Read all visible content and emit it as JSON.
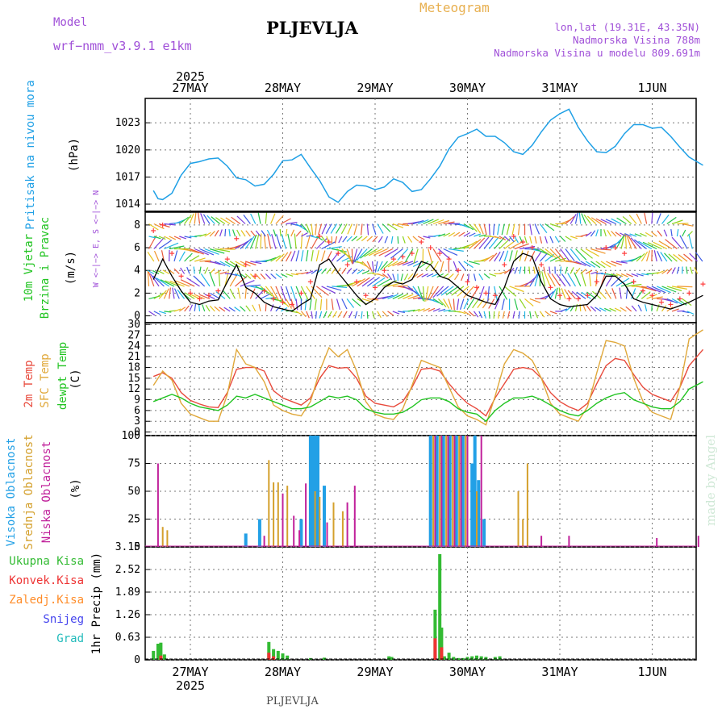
{
  "header": {
    "model_label": "Model",
    "model_value": "wrf−nmm_v3.9.1  e1km",
    "station": "PLJEVLJA",
    "product": "Meteogram",
    "lonlat": "lon,lat (19.31E, 43.35N)",
    "altitude": "Nadmorska Visina 788m",
    "model_altitude": "Nadmorska Visina u modelu 809.691m"
  },
  "footer": {
    "station": "PLJEVLJA",
    "watermark": "made by Angel"
  },
  "time_axis": {
    "year": "2025",
    "days": [
      "27MAY",
      "28MAY",
      "29MAY",
      "30MAY",
      "31MAY",
      "1JUN"
    ]
  },
  "colors": {
    "pressure": "#1fa0e6",
    "wind_speed": "#000000",
    "wind_gust": "#ff3c3c",
    "temp_2m": "#e84a3c",
    "temp_sfc": "#e0a83a",
    "temp_dew": "#22c422",
    "cloud_high": "#22a0e6",
    "cloud_mid": "#d4a02c",
    "cloud_low": "#c0209a",
    "precip_total": "#33bb33",
    "precip_conv": "#ee3333",
    "precip_frozen": "#ff8c28",
    "precip_snow": "#4444ee",
    "precip_hail": "#22bbbb"
  },
  "chart_data": [
    {
      "type": "line",
      "panel": "pressure",
      "ylabel": [
        "Pritisak na nivou mora",
        "(hPa)"
      ],
      "yticks": [
        1014,
        1017,
        1020,
        1023
      ],
      "ylim": [
        1013.2,
        1025.7
      ],
      "x_unit": "days since 27MAY 00 UTC",
      "x": [
        -0.4,
        -0.35,
        -0.3,
        -0.2,
        -0.1,
        0.0,
        0.1,
        0.2,
        0.3,
        0.4,
        0.5,
        0.6,
        0.7,
        0.8,
        0.9,
        1.0,
        1.1,
        1.2,
        1.3,
        1.4,
        1.5,
        1.6,
        1.7,
        1.8,
        1.9,
        2.0,
        2.1,
        2.2,
        2.3,
        2.4,
        2.5,
        2.6,
        2.7,
        2.8,
        2.9,
        3.0,
        3.1,
        3.2,
        3.3,
        3.4,
        3.5,
        3.6,
        3.7,
        3.8,
        3.9,
        4.0,
        4.1,
        4.2,
        4.3,
        4.4,
        4.5,
        4.6,
        4.7,
        4.8,
        4.9,
        5.0,
        5.1,
        5.2,
        5.3,
        5.4,
        5.55
      ],
      "y": [
        1015.5,
        1014.6,
        1014.5,
        1015.2,
        1017.2,
        1018.5,
        1018.7,
        1019.0,
        1019.1,
        1018.2,
        1016.9,
        1016.7,
        1016.0,
        1016.2,
        1017.3,
        1018.8,
        1018.9,
        1019.5,
        1018.0,
        1016.6,
        1014.8,
        1014.2,
        1015.4,
        1016.1,
        1016.0,
        1015.6,
        1015.9,
        1016.8,
        1016.4,
        1015.4,
        1015.6,
        1016.8,
        1018.2,
        1020.1,
        1021.4,
        1021.8,
        1022.3,
        1021.5,
        1021.5,
        1020.8,
        1019.8,
        1019.5,
        1020.5,
        1022.0,
        1023.3,
        1024.0,
        1024.5,
        1022.5,
        1021.0,
        1019.8,
        1019.7,
        1020.4,
        1021.8,
        1022.8,
        1022.8,
        1022.4,
        1022.5,
        1021.5,
        1020.3,
        1019.2,
        1018.3
      ]
    },
    {
      "type": "line",
      "panel": "wind",
      "ylabel": [
        "10m Vjetar",
        "Brzina i Pravac",
        "(m/s)"
      ],
      "direction_key": "W <−|−> E, S <−|−> N",
      "yticks": [
        0,
        2,
        4,
        6,
        8
      ],
      "ylim": [
        -0.6,
        9.2
      ],
      "x_unit": "days since 27MAY 00 UTC",
      "series": [
        {
          "name": "speed",
          "x": [
            -0.4,
            -0.3,
            -0.2,
            -0.1,
            0.0,
            0.1,
            0.2,
            0.3,
            0.4,
            0.5,
            0.6,
            0.7,
            0.8,
            0.9,
            1.0,
            1.1,
            1.2,
            1.3,
            1.4,
            1.5,
            1.6,
            1.7,
            1.8,
            1.9,
            2.0,
            2.1,
            2.2,
            2.3,
            2.4,
            2.5,
            2.6,
            2.7,
            2.8,
            2.9,
            3.0,
            3.1,
            3.2,
            3.3,
            3.4,
            3.5,
            3.6,
            3.7,
            3.8,
            3.9,
            4.0,
            4.1,
            4.2,
            4.3,
            4.4,
            4.5,
            4.6,
            4.7,
            4.8,
            4.9,
            5.0,
            5.1,
            5.2,
            5.3,
            5.4,
            5.55
          ],
          "y": [
            3.2,
            5.0,
            3.5,
            2.2,
            1.2,
            1.0,
            1.3,
            1.4,
            3.0,
            4.5,
            2.5,
            2.0,
            1.2,
            0.8,
            0.6,
            0.4,
            1.0,
            1.5,
            4.5,
            5.0,
            3.8,
            2.8,
            1.8,
            1.0,
            1.5,
            2.5,
            3.0,
            2.8,
            3.2,
            4.8,
            4.5,
            3.5,
            3.2,
            2.5,
            1.8,
            1.5,
            1.2,
            1.0,
            2.5,
            4.8,
            5.5,
            5.2,
            3.0,
            1.5,
            1.0,
            0.8,
            0.9,
            1.0,
            1.8,
            3.5,
            3.5,
            2.8,
            1.5,
            1.2,
            1.0,
            0.8,
            0.6,
            0.9,
            1.2,
            1.8
          ]
        },
        {
          "name": "gust",
          "x": [
            -0.4,
            -0.3,
            -0.2,
            -0.1,
            0.0,
            0.1,
            0.2,
            0.3,
            0.4,
            0.5,
            0.6,
            0.7,
            0.8,
            0.9,
            1.0,
            1.1,
            1.2,
            1.3,
            1.4,
            1.5,
            1.6,
            1.7,
            1.8,
            1.9,
            2.0,
            2.1,
            2.2,
            2.3,
            2.4,
            2.5,
            2.6,
            2.7,
            2.8,
            2.9,
            3.0,
            3.1,
            3.2,
            3.3,
            3.4,
            3.5,
            3.6,
            3.7,
            3.8,
            3.9,
            4.0,
            4.1,
            4.2,
            4.3,
            4.4,
            4.5,
            4.6,
            4.7,
            4.8,
            4.9,
            5.0,
            5.1,
            5.2,
            5.3,
            5.4,
            5.55
          ],
          "y": [
            7.5,
            8.0,
            5.5,
            3.5,
            2.0,
            1.5,
            1.8,
            2.2,
            5.0,
            6.8,
            4.5,
            3.5,
            2.2,
            1.5,
            1.2,
            1.0,
            2.0,
            3.0,
            7.0,
            6.5,
            5.5,
            4.5,
            3.0,
            1.8,
            2.5,
            4.0,
            5.0,
            5.2,
            5.5,
            6.5,
            6.0,
            5.5,
            5.0,
            4.0,
            3.0,
            2.5,
            2.0,
            1.8,
            4.5,
            7.0,
            6.5,
            6.0,
            4.5,
            2.5,
            1.8,
            1.5,
            1.5,
            1.8,
            3.0,
            6.0,
            6.0,
            5.5,
            3.0,
            2.2,
            1.8,
            1.2,
            1.0,
            1.5,
            2.0,
            2.8
          ]
        }
      ]
    },
    {
      "type": "line",
      "panel": "temperature",
      "ylabel": [
        "2m Temp",
        "SFC Temp",
        "dewpt Temp",
        "(C)"
      ],
      "yticks": [
        0,
        3,
        6,
        9,
        12,
        15,
        18,
        21,
        24,
        27,
        30
      ],
      "ylim": [
        -1,
        30.5
      ],
      "x_unit": "days since 27MAY 00 UTC",
      "series": [
        {
          "name": "2m Temp",
          "x": [
            -0.4,
            -0.3,
            -0.2,
            -0.1,
            0.0,
            0.1,
            0.2,
            0.3,
            0.4,
            0.5,
            0.6,
            0.7,
            0.8,
            0.9,
            1.0,
            1.1,
            1.2,
            1.3,
            1.4,
            1.5,
            1.6,
            1.7,
            1.8,
            1.9,
            2.0,
            2.1,
            2.2,
            2.3,
            2.4,
            2.5,
            2.6,
            2.7,
            2.8,
            2.9,
            3.0,
            3.1,
            3.2,
            3.3,
            3.4,
            3.5,
            3.6,
            3.7,
            3.8,
            3.9,
            4.0,
            4.1,
            4.2,
            4.3,
            4.4,
            4.5,
            4.6,
            4.7,
            4.8,
            4.9,
            5.0,
            5.1,
            5.2,
            5.3,
            5.4,
            5.55
          ],
          "y": [
            15.5,
            16.5,
            15.0,
            11.0,
            8.8,
            7.8,
            7.0,
            6.8,
            11.0,
            17.5,
            18.0,
            18.0,
            17.0,
            11.5,
            9.5,
            8.5,
            7.5,
            9.5,
            15.0,
            18.5,
            17.8,
            18.0,
            15.0,
            10.0,
            8.0,
            7.5,
            7.0,
            8.5,
            12.5,
            17.5,
            17.8,
            17.0,
            13.5,
            10.5,
            8.0,
            6.5,
            4.5,
            9.5,
            13.5,
            17.5,
            18.0,
            17.5,
            15.0,
            11.0,
            8.5,
            7.0,
            6.0,
            8.0,
            13.5,
            18.5,
            20.5,
            20.0,
            16.0,
            12.5,
            10.5,
            9.5,
            8.5,
            12.5,
            18.5,
            23.0
          ]
        },
        {
          "name": "SFC Temp",
          "x": [
            -0.4,
            -0.3,
            -0.2,
            -0.1,
            0.0,
            0.1,
            0.2,
            0.3,
            0.4,
            0.5,
            0.6,
            0.7,
            0.8,
            0.9,
            1.0,
            1.1,
            1.2,
            1.3,
            1.4,
            1.5,
            1.6,
            1.7,
            1.8,
            1.9,
            2.0,
            2.1,
            2.2,
            2.3,
            2.4,
            2.5,
            2.6,
            2.7,
            2.8,
            2.9,
            3.0,
            3.1,
            3.2,
            3.3,
            3.4,
            3.5,
            3.6,
            3.7,
            3.8,
            3.9,
            4.0,
            4.1,
            4.2,
            4.3,
            4.4,
            4.5,
            4.6,
            4.7,
            4.8,
            4.9,
            5.0,
            5.1,
            5.2,
            5.3,
            5.4,
            5.55
          ],
          "y": [
            13.0,
            17.0,
            14.5,
            8.0,
            5.0,
            4.0,
            3.0,
            3.0,
            10.5,
            23.0,
            19.0,
            18.0,
            14.0,
            7.5,
            6.0,
            5.0,
            4.5,
            8.5,
            17.0,
            23.5,
            21.0,
            23.0,
            17.0,
            8.5,
            5.0,
            4.0,
            3.5,
            6.5,
            13.0,
            20.0,
            19.0,
            18.0,
            12.5,
            7.0,
            4.5,
            3.5,
            2.0,
            10.0,
            19.0,
            23.0,
            22.0,
            20.0,
            15.0,
            8.0,
            5.0,
            4.0,
            3.0,
            7.0,
            16.5,
            25.5,
            25.0,
            24.0,
            15.0,
            8.5,
            5.5,
            4.5,
            3.5,
            12.5,
            26.0,
            28.5
          ]
        },
        {
          "name": "dewpt Temp",
          "x": [
            -0.4,
            -0.3,
            -0.2,
            -0.1,
            0.0,
            0.1,
            0.2,
            0.3,
            0.4,
            0.5,
            0.6,
            0.7,
            0.8,
            0.9,
            1.0,
            1.1,
            1.2,
            1.3,
            1.4,
            1.5,
            1.6,
            1.7,
            1.8,
            1.9,
            2.0,
            2.1,
            2.2,
            2.3,
            2.4,
            2.5,
            2.6,
            2.7,
            2.8,
            2.9,
            3.0,
            3.1,
            3.2,
            3.3,
            3.4,
            3.5,
            3.6,
            3.7,
            3.8,
            3.9,
            4.0,
            4.1,
            4.2,
            4.3,
            4.4,
            4.5,
            4.6,
            4.7,
            4.8,
            4.9,
            5.0,
            5.1,
            5.2,
            5.3,
            5.4,
            5.55
          ],
          "y": [
            8.5,
            9.5,
            10.5,
            9.5,
            8.0,
            7.0,
            6.5,
            6.0,
            7.5,
            10.0,
            9.5,
            10.5,
            9.5,
            8.5,
            7.5,
            6.5,
            6.5,
            7.0,
            8.5,
            10.0,
            9.5,
            10.0,
            9.0,
            6.5,
            5.5,
            5.0,
            5.0,
            5.5,
            7.0,
            9.0,
            9.5,
            9.5,
            8.5,
            6.5,
            5.5,
            5.0,
            3.0,
            6.0,
            8.0,
            9.5,
            9.5,
            10.0,
            9.0,
            7.5,
            6.0,
            5.0,
            4.5,
            6.0,
            8.0,
            9.5,
            10.5,
            11.0,
            9.0,
            8.0,
            7.0,
            6.5,
            6.5,
            8.5,
            12.0,
            14.0
          ]
        }
      ]
    },
    {
      "type": "bar",
      "panel": "cloud_cover",
      "ylabel": [
        "Visoka Oblacnost",
        "Srednja Oblacnost",
        "Niska Oblacnost",
        "(%)"
      ],
      "yticks": [
        0,
        25,
        50,
        75,
        100
      ],
      "ylim": [
        0,
        100
      ],
      "x_unit": "days since 27MAY 00 UTC",
      "series": [
        {
          "name": "Visoka Oblacnost",
          "x": [
            0.6,
            0.75,
            1.2,
            1.3,
            1.32,
            1.34,
            1.36,
            1.38,
            1.45,
            2.6,
            2.67,
            2.74,
            2.81,
            2.88,
            2.95,
            3.05,
            3.08,
            3.12,
            3.18
          ],
          "y": [
            12,
            25,
            25,
            100,
            100,
            100,
            100,
            100,
            55,
            100,
            100,
            100,
            100,
            100,
            100,
            75,
            100,
            60,
            25
          ]
        },
        {
          "name": "Srednja Oblacnost",
          "x": [
            -0.3,
            -0.25,
            0.85,
            0.9,
            0.95,
            1.05,
            1.35,
            1.4,
            1.55,
            1.65,
            2.63,
            2.7,
            2.77,
            2.84,
            2.91,
            2.98,
            3.1,
            3.55,
            3.6,
            3.65
          ],
          "y": [
            18,
            15,
            78,
            58,
            58,
            55,
            50,
            45,
            40,
            32,
            100,
            100,
            100,
            100,
            100,
            100,
            50,
            50,
            25,
            75
          ]
        },
        {
          "name": "Niska Oblacnost",
          "x": [
            -0.35,
            0.8,
            1.0,
            1.12,
            1.18,
            1.25,
            1.48,
            1.7,
            1.78,
            2.65,
            2.72,
            2.79,
            2.86,
            2.93,
            3.0,
            3.15,
            3.8,
            4.1,
            5.05,
            5.5
          ],
          "y": [
            75,
            10,
            48,
            28,
            15,
            57,
            22,
            40,
            55,
            100,
            100,
            100,
            100,
            100,
            100,
            100,
            10,
            10,
            8,
            10
          ]
        }
      ]
    },
    {
      "type": "bar",
      "panel": "precipitation",
      "ylabel": [
        "1hr Precip (mm)"
      ],
      "legend": [
        "Ukupna Kisa",
        "Konvek.Kisa",
        "Zaledj.Kisa",
        "Snijeg",
        "Grad"
      ],
      "yticks": [
        0,
        0.63,
        1.26,
        1.89,
        2.52,
        3.15
      ],
      "ylim": [
        0,
        3.15
      ],
      "x_unit": "days since 27MAY 00 UTC",
      "series": [
        {
          "name": "Ukupna Kisa",
          "x": [
            -0.4,
            -0.35,
            -0.32,
            -0.28,
            0.85,
            0.9,
            0.95,
            1.0,
            1.05,
            1.3,
            1.45,
            2.15,
            2.18,
            2.65,
            2.7,
            2.72,
            2.75,
            2.8,
            2.85,
            2.9,
            2.95,
            3.0,
            3.05,
            3.1,
            3.15,
            3.2,
            3.3,
            3.35
          ],
          "y": [
            0.25,
            0.45,
            0.48,
            0.15,
            0.5,
            0.3,
            0.25,
            0.18,
            0.12,
            0.05,
            0.06,
            0.1,
            0.08,
            1.4,
            2.95,
            0.9,
            0.1,
            0.2,
            0.08,
            0.05,
            0.05,
            0.08,
            0.1,
            0.12,
            0.1,
            0.08,
            0.08,
            0.1
          ]
        },
        {
          "name": "Konvek.Kisa",
          "x": [
            -0.32,
            0.85,
            0.9,
            2.65,
            2.72
          ],
          "y": [
            0.12,
            0.2,
            0.1,
            0.6,
            0.35
          ]
        }
      ]
    }
  ]
}
